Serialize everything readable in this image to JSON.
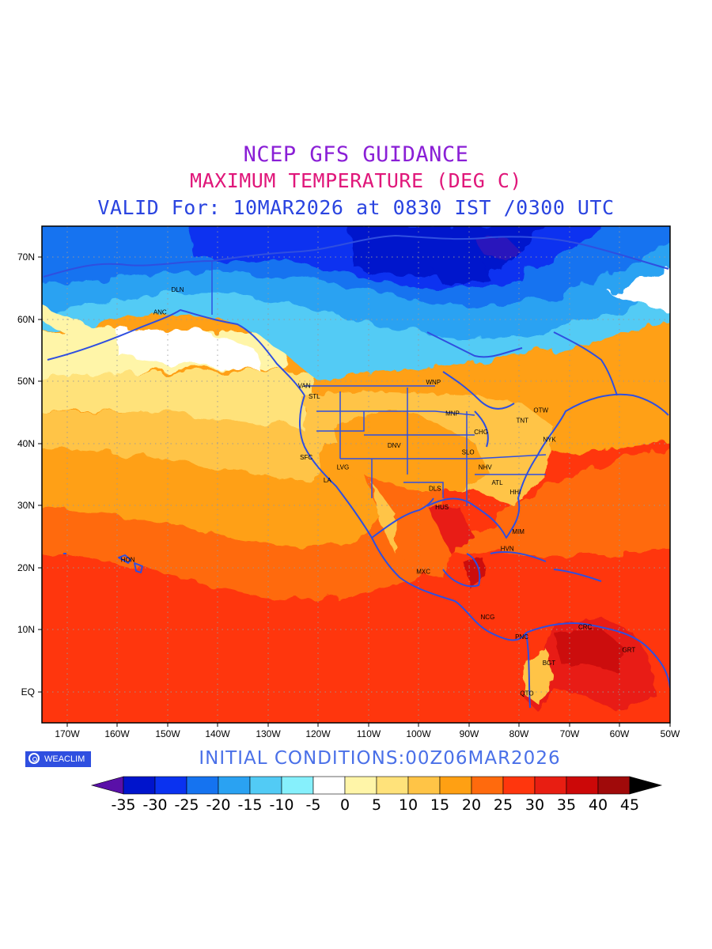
{
  "header": {
    "line1": "NCEP GFS GUIDANCE",
    "line1_color": "#8a1fd6",
    "line2": "MAXIMUM TEMPERATURE (DEG C)",
    "line2_color": "#e0177a",
    "line3": "VALID For: 10MAR2026 at 0830 IST /0300 UTC",
    "line3_color": "#2a44e0"
  },
  "map": {
    "lon_range": [
      -175,
      -50
    ],
    "lat_range": [
      -5,
      75
    ],
    "lon_ticks": [
      "170W",
      "160W",
      "150W",
      "140W",
      "130W",
      "120W",
      "110W",
      "100W",
      "90W",
      "80W",
      "70W",
      "60W",
      "50W"
    ],
    "lat_ticks": [
      "EQ",
      "10N",
      "20N",
      "30N",
      "40N",
      "50N",
      "60N",
      "70N"
    ],
    "cities": [
      {
        "code": "DLN",
        "lon": -148,
        "lat": 64.8
      },
      {
        "code": "ANC",
        "lon": -151.5,
        "lat": 61.2
      },
      {
        "code": "VAN",
        "lon": -122.8,
        "lat": 49.3
      },
      {
        "code": "STL",
        "lon": -120.8,
        "lat": 47.6
      },
      {
        "code": "WNP",
        "lon": -97.1,
        "lat": 49.9
      },
      {
        "code": "MNP",
        "lon": -93.3,
        "lat": 44.9
      },
      {
        "code": "TNT",
        "lon": -79.4,
        "lat": 43.7
      },
      {
        "code": "OTW",
        "lon": -75.7,
        "lat": 45.4
      },
      {
        "code": "CHG",
        "lon": -87.6,
        "lat": 41.9
      },
      {
        "code": "NYK",
        "lon": -74,
        "lat": 40.7
      },
      {
        "code": "DNV",
        "lon": -104.9,
        "lat": 39.7
      },
      {
        "code": "SFC",
        "lon": -122.4,
        "lat": 37.8
      },
      {
        "code": "SLO",
        "lon": -90.2,
        "lat": 38.6
      },
      {
        "code": "LVG",
        "lon": -115.1,
        "lat": 36.2
      },
      {
        "code": "NHV",
        "lon": -86.8,
        "lat": 36.2
      },
      {
        "code": "LA",
        "lon": -118.2,
        "lat": 34.1
      },
      {
        "code": "ATL",
        "lon": -84.4,
        "lat": 33.7
      },
      {
        "code": "DLS",
        "lon": -96.8,
        "lat": 32.8
      },
      {
        "code": "HHI",
        "lon": -80.8,
        "lat": 32.2
      },
      {
        "code": "HUS",
        "lon": -95.4,
        "lat": 29.8
      },
      {
        "code": "MIM",
        "lon": -80.2,
        "lat": 25.8
      },
      {
        "code": "HVN",
        "lon": -82.4,
        "lat": 23.1
      },
      {
        "code": "HON",
        "lon": -157.9,
        "lat": 21.3
      },
      {
        "code": "MXC",
        "lon": -99.1,
        "lat": 19.4
      },
      {
        "code": "NCG",
        "lon": -86.3,
        "lat": 12.1
      },
      {
        "code": "CRC",
        "lon": -66.9,
        "lat": 10.5
      },
      {
        "code": "PNC",
        "lon": -79.5,
        "lat": 8.9
      },
      {
        "code": "GRT",
        "lon": -58.2,
        "lat": 6.8
      },
      {
        "code": "BGT",
        "lon": -74.1,
        "lat": 4.7
      },
      {
        "code": "QTO",
        "lon": -78.5,
        "lat": -0.2
      }
    ]
  },
  "footer": {
    "logo_text": "WEACLIM",
    "initial_conditions": "INITIAL  CONDITIONS:00Z06MAR2026"
  },
  "colorbar": {
    "labels": [
      "-35",
      "-30",
      "-25",
      "-20",
      "-15",
      "-10",
      "-5",
      "0",
      "5",
      "10",
      "15",
      "20",
      "25",
      "30",
      "35",
      "40",
      "45"
    ],
    "colors": [
      "#5a10a8",
      "#0014cc",
      "#0a32f0",
      "#1573f0",
      "#2aa2f2",
      "#52cbf5",
      "#86f0fc",
      "#ffffff",
      "#fff5a8",
      "#ffe27a",
      "#ffc446",
      "#ffa013",
      "#ff6a0d",
      "#ff360d",
      "#e81e12",
      "#cc0808",
      "#a00a0a",
      "#000000"
    ]
  }
}
